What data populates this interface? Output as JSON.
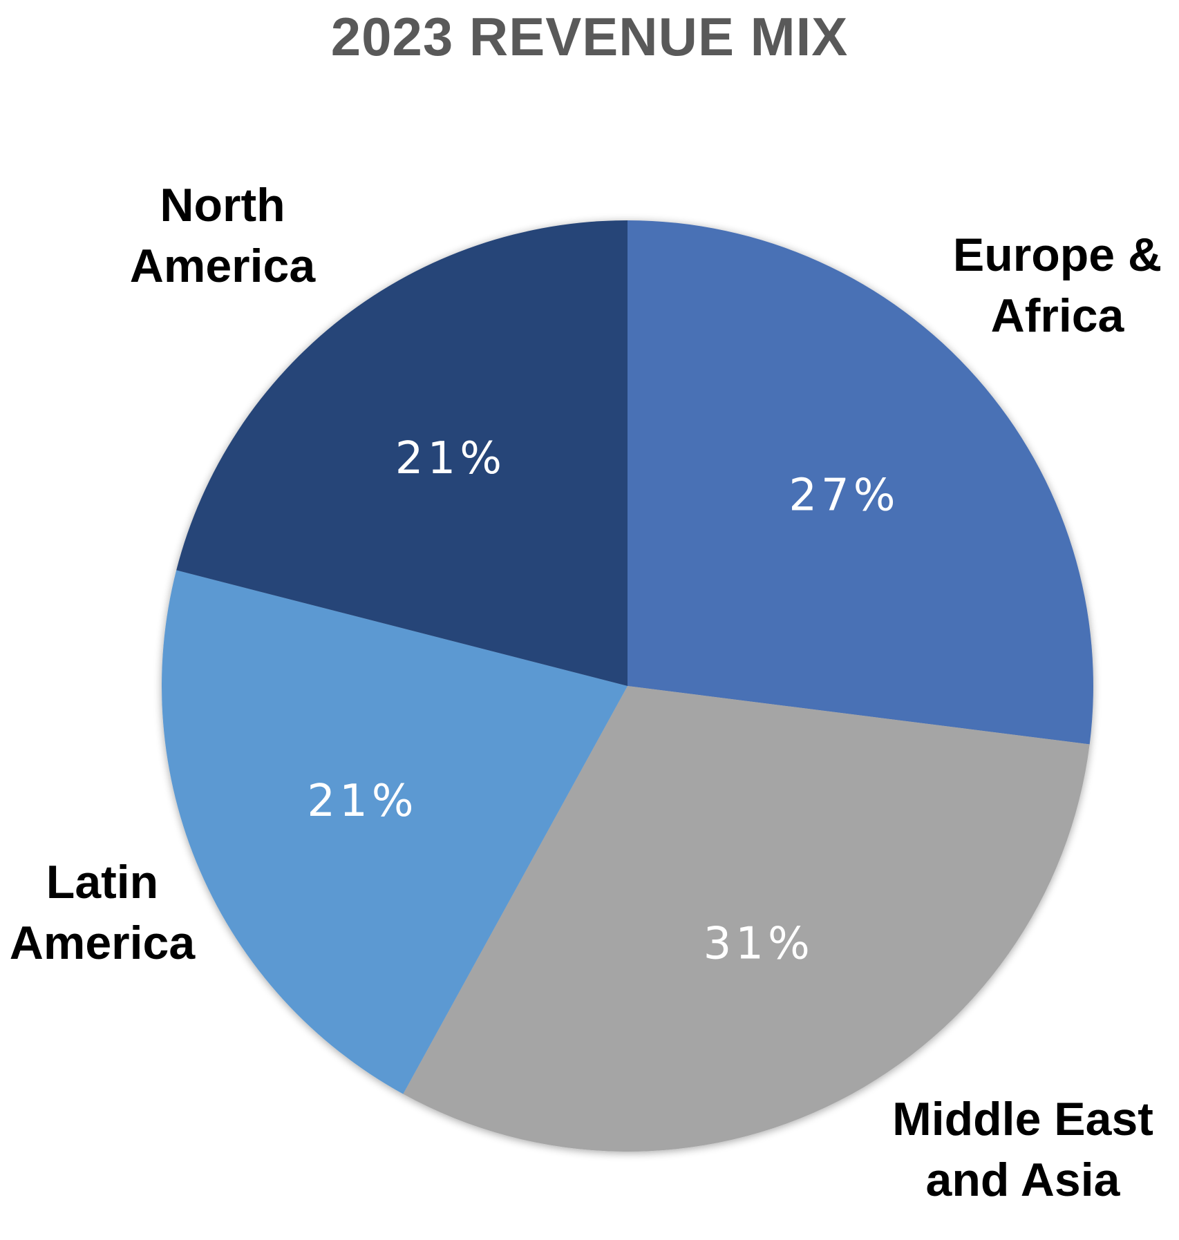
{
  "chart_data": {
    "type": "pie",
    "title": "2023 REVENUE MIX",
    "slices": [
      {
        "label": "Europe & Africa",
        "label_lines": [
          "Europe &",
          "Africa"
        ],
        "value": 27,
        "display": "27%",
        "color": "#4a71b5"
      },
      {
        "label": "Middle East and Asia",
        "label_lines": [
          "Middle East",
          "and Asia"
        ],
        "value": 31,
        "display": "31%",
        "color": "#a5a5a5"
      },
      {
        "label": "Latin America",
        "label_lines": [
          "Latin",
          "America"
        ],
        "value": 21,
        "display": "21%",
        "color": "#5c99d2"
      },
      {
        "label": "North America",
        "label_lines": [
          "North",
          "America"
        ],
        "value": 21,
        "display": "21%",
        "color": "#254478"
      }
    ],
    "start_angle_deg": 0,
    "direction": "clockwise",
    "legend": "none",
    "data_labels": "inside"
  }
}
